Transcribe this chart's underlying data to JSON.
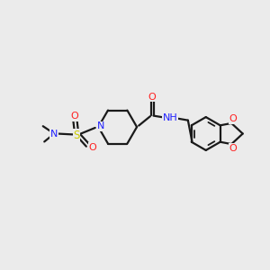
{
  "bg_color": "#ebebeb",
  "bond_color": "#1a1a1a",
  "N_color": "#2020ff",
  "O_color": "#ff2020",
  "S_color": "#cccc00",
  "NH_color": "#2020ff",
  "figsize": [
    3.0,
    3.0
  ],
  "dpi": 100,
  "xlim": [
    0,
    10
  ],
  "ylim": [
    0,
    10
  ]
}
